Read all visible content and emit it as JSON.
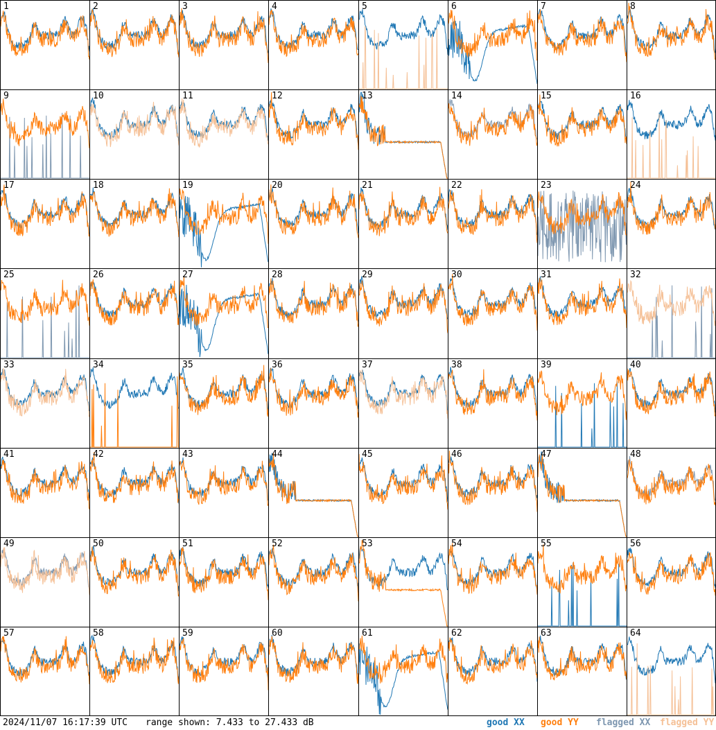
{
  "chart_data": {
    "type": "line",
    "title": "",
    "timestamp": "2024/11/07 16:17:39 UTC",
    "range_text": "range shown: 7.433 to 27.433 dB",
    "ylim": [
      7.433,
      27.433
    ],
    "legend": [
      {
        "name": "good XX",
        "color": "#1f77b4"
      },
      {
        "name": "good YY",
        "color": "#ff7f0e"
      },
      {
        "name": "flagged XX",
        "color": "#7e97b0"
      },
      {
        "name": "flagged YY",
        "color": "#f5c096"
      }
    ],
    "legend_placement": "bottom-right",
    "grid_layout": "8x8",
    "panels": [
      {
        "label": "1",
        "xx": "good",
        "yy": "good",
        "xx_kind": "normal",
        "yy_kind": "normal"
      },
      {
        "label": "2",
        "xx": "good",
        "yy": "good",
        "xx_kind": "normal",
        "yy_kind": "normal"
      },
      {
        "label": "3",
        "xx": "good",
        "yy": "good",
        "xx_kind": "normal",
        "yy_kind": "normal"
      },
      {
        "label": "4",
        "xx": "good",
        "yy": "good",
        "xx_kind": "normal",
        "yy_kind": "normal"
      },
      {
        "label": "5",
        "xx": "good",
        "yy": "flagged",
        "xx_kind": "normal",
        "yy_kind": "spikes"
      },
      {
        "label": "6",
        "xx": "good",
        "yy": "good",
        "xx_kind": "dip",
        "yy_kind": "normal"
      },
      {
        "label": "7",
        "xx": "good",
        "yy": "good",
        "xx_kind": "normal",
        "yy_kind": "normal"
      },
      {
        "label": "8",
        "xx": "good",
        "yy": "good",
        "xx_kind": "normal",
        "yy_kind": "normal"
      },
      {
        "label": "9",
        "xx": "flagged",
        "yy": "good",
        "xx_kind": "spikes",
        "yy_kind": "normal"
      },
      {
        "label": "10",
        "xx": "good",
        "yy": "flagged",
        "xx_kind": "normal",
        "yy_kind": "normal"
      },
      {
        "label": "11",
        "xx": "good",
        "yy": "flagged",
        "xx_kind": "normal",
        "yy_kind": "normal"
      },
      {
        "label": "12",
        "xx": "good",
        "yy": "good",
        "xx_kind": "normal",
        "yy_kind": "normal"
      },
      {
        "label": "13",
        "xx": "good",
        "yy": "good",
        "xx_kind": "flat",
        "yy_kind": "flat"
      },
      {
        "label": "14",
        "xx": "flagged",
        "yy": "good",
        "xx_kind": "normal",
        "yy_kind": "normal"
      },
      {
        "label": "15",
        "xx": "good",
        "yy": "good",
        "xx_kind": "normal",
        "yy_kind": "normal"
      },
      {
        "label": "16",
        "xx": "good",
        "yy": "flagged",
        "xx_kind": "normal",
        "yy_kind": "spikes"
      },
      {
        "label": "17",
        "xx": "good",
        "yy": "good",
        "xx_kind": "normal",
        "yy_kind": "normal"
      },
      {
        "label": "18",
        "xx": "good",
        "yy": "good",
        "xx_kind": "normal",
        "yy_kind": "normal"
      },
      {
        "label": "19",
        "xx": "good",
        "yy": "good",
        "xx_kind": "dip",
        "yy_kind": "normal"
      },
      {
        "label": "20",
        "xx": "good",
        "yy": "good",
        "xx_kind": "normal",
        "yy_kind": "normal"
      },
      {
        "label": "21",
        "xx": "good",
        "yy": "good",
        "xx_kind": "normal",
        "yy_kind": "normal"
      },
      {
        "label": "22",
        "xx": "good",
        "yy": "good",
        "xx_kind": "normal",
        "yy_kind": "normal"
      },
      {
        "label": "23",
        "xx": "flagged",
        "yy": "good",
        "xx_kind": "noisy",
        "yy_kind": "normal"
      },
      {
        "label": "24",
        "xx": "good",
        "yy": "good",
        "xx_kind": "normal",
        "yy_kind": "normal"
      },
      {
        "label": "25",
        "xx": "flagged",
        "yy": "good",
        "xx_kind": "spikes",
        "yy_kind": "normal"
      },
      {
        "label": "26",
        "xx": "good",
        "yy": "good",
        "xx_kind": "normal",
        "yy_kind": "normal"
      },
      {
        "label": "27",
        "xx": "good",
        "yy": "good",
        "xx_kind": "dip",
        "yy_kind": "normal"
      },
      {
        "label": "28",
        "xx": "good",
        "yy": "good",
        "xx_kind": "normal",
        "yy_kind": "normal"
      },
      {
        "label": "29",
        "xx": "good",
        "yy": "good",
        "xx_kind": "normal",
        "yy_kind": "normal"
      },
      {
        "label": "30",
        "xx": "good",
        "yy": "good",
        "xx_kind": "normal",
        "yy_kind": "normal"
      },
      {
        "label": "31",
        "xx": "good",
        "yy": "good",
        "xx_kind": "normal",
        "yy_kind": "normal"
      },
      {
        "label": "32",
        "xx": "flagged",
        "yy": "flagged",
        "xx_kind": "spikes",
        "yy_kind": "normal"
      },
      {
        "label": "33",
        "xx": "good",
        "yy": "flagged",
        "xx_kind": "normal",
        "yy_kind": "normal"
      },
      {
        "label": "34",
        "xx": "good",
        "yy": "good",
        "xx_kind": "normal",
        "yy_kind": "spikes"
      },
      {
        "label": "35",
        "xx": "good",
        "yy": "good",
        "xx_kind": "normal",
        "yy_kind": "normal"
      },
      {
        "label": "36",
        "xx": "good",
        "yy": "good",
        "xx_kind": "normal",
        "yy_kind": "normal"
      },
      {
        "label": "37",
        "xx": "good",
        "yy": "flagged",
        "xx_kind": "normal",
        "yy_kind": "normal"
      },
      {
        "label": "38",
        "xx": "good",
        "yy": "good",
        "xx_kind": "normal",
        "yy_kind": "normal"
      },
      {
        "label": "39",
        "xx": "good",
        "yy": "good",
        "xx_kind": "spikes",
        "yy_kind": "normal"
      },
      {
        "label": "40",
        "xx": "good",
        "yy": "good",
        "xx_kind": "normal",
        "yy_kind": "normal"
      },
      {
        "label": "41",
        "xx": "good",
        "yy": "good",
        "xx_kind": "normal",
        "yy_kind": "normal"
      },
      {
        "label": "42",
        "xx": "good",
        "yy": "good",
        "xx_kind": "normal",
        "yy_kind": "normal"
      },
      {
        "label": "43",
        "xx": "good",
        "yy": "good",
        "xx_kind": "normal",
        "yy_kind": "normal"
      },
      {
        "label": "44",
        "xx": "good",
        "yy": "good",
        "xx_kind": "flat",
        "yy_kind": "flat"
      },
      {
        "label": "45",
        "xx": "good",
        "yy": "good",
        "xx_kind": "normal",
        "yy_kind": "normal"
      },
      {
        "label": "46",
        "xx": "good",
        "yy": "good",
        "xx_kind": "normal",
        "yy_kind": "normal"
      },
      {
        "label": "47",
        "xx": "good",
        "yy": "good",
        "xx_kind": "flat",
        "yy_kind": "flat"
      },
      {
        "label": "48",
        "xx": "flagged",
        "yy": "good",
        "xx_kind": "normal",
        "yy_kind": "normal"
      },
      {
        "label": "49",
        "xx": "flagged",
        "yy": "flagged",
        "xx_kind": "normal",
        "yy_kind": "normal"
      },
      {
        "label": "50",
        "xx": "good",
        "yy": "good",
        "xx_kind": "normal",
        "yy_kind": "normal"
      },
      {
        "label": "51",
        "xx": "good",
        "yy": "good",
        "xx_kind": "normal",
        "yy_kind": "normal"
      },
      {
        "label": "52",
        "xx": "good",
        "yy": "good",
        "xx_kind": "normal",
        "yy_kind": "normal"
      },
      {
        "label": "53",
        "xx": "good",
        "yy": "good",
        "xx_kind": "normal",
        "yy_kind": "flat"
      },
      {
        "label": "54",
        "xx": "good",
        "yy": "good",
        "xx_kind": "normal",
        "yy_kind": "normal"
      },
      {
        "label": "55",
        "xx": "good",
        "yy": "good",
        "xx_kind": "spikes",
        "yy_kind": "normal"
      },
      {
        "label": "56",
        "xx": "good",
        "yy": "good",
        "xx_kind": "normal",
        "yy_kind": "normal"
      },
      {
        "label": "57",
        "xx": "good",
        "yy": "good",
        "xx_kind": "normal",
        "yy_kind": "normal"
      },
      {
        "label": "58",
        "xx": "good",
        "yy": "good",
        "xx_kind": "normal",
        "yy_kind": "normal"
      },
      {
        "label": "59",
        "xx": "good",
        "yy": "good",
        "xx_kind": "normal",
        "yy_kind": "normal"
      },
      {
        "label": "60",
        "xx": "good",
        "yy": "good",
        "xx_kind": "normal",
        "yy_kind": "normal"
      },
      {
        "label": "61",
        "xx": "good",
        "yy": "good",
        "xx_kind": "dip",
        "yy_kind": "normal"
      },
      {
        "label": "62",
        "xx": "good",
        "yy": "good",
        "xx_kind": "normal",
        "yy_kind": "normal"
      },
      {
        "label": "63",
        "xx": "good",
        "yy": "good",
        "xx_kind": "normal",
        "yy_kind": "normal"
      },
      {
        "label": "64",
        "xx": "good",
        "yy": "flagged",
        "xx_kind": "normal",
        "yy_kind": "spikes"
      }
    ]
  }
}
